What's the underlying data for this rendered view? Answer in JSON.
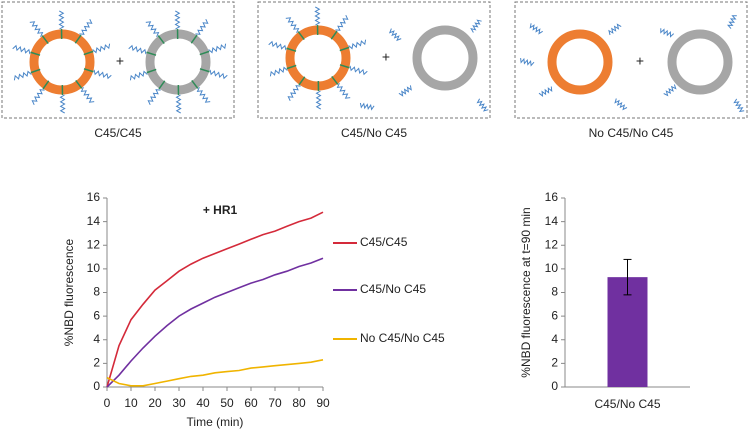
{
  "panels": [
    {
      "label": "C45/C45",
      "operator": "+"
    },
    {
      "label": "C45/No C45",
      "operator": "+"
    },
    {
      "label": "No C45/No C45",
      "operator": "+"
    }
  ],
  "chart_data": [
    {
      "type": "line",
      "annotation": "+ HR1",
      "xlabel": "Time (min)",
      "ylabel": "%NBD fluorescence",
      "x": [
        0,
        5,
        10,
        15,
        20,
        25,
        30,
        35,
        40,
        45,
        50,
        55,
        60,
        65,
        70,
        75,
        80,
        85,
        90
      ],
      "xlim": [
        0,
        90
      ],
      "xticks": [
        0,
        10,
        20,
        30,
        40,
        50,
        60,
        70,
        80,
        90
      ],
      "ylim": [
        0,
        16
      ],
      "yticks": [
        0,
        2,
        4,
        6,
        8,
        10,
        12,
        14,
        16
      ],
      "series": [
        {
          "name": "C45/C45",
          "color": "#d42a3a",
          "values": [
            0,
            3.5,
            5.7,
            7,
            8.2,
            9,
            9.8,
            10.4,
            10.9,
            11.3,
            11.7,
            12.1,
            12.5,
            12.9,
            13.2,
            13.6,
            14,
            14.3,
            14.8
          ]
        },
        {
          "name": "C45/No C45",
          "color": "#7030a0",
          "values": [
            0,
            1,
            2.2,
            3.3,
            4.3,
            5.2,
            6,
            6.6,
            7.1,
            7.6,
            8,
            8.4,
            8.8,
            9.1,
            9.5,
            9.8,
            10.2,
            10.5,
            10.9
          ]
        },
        {
          "name": "No C45/No C45",
          "color": "#f0b400",
          "values": [
            0.8,
            0.3,
            0.1,
            0.1,
            0.3,
            0.5,
            0.7,
            0.9,
            1.0,
            1.2,
            1.3,
            1.4,
            1.6,
            1.7,
            1.8,
            1.9,
            2.0,
            2.1,
            2.3
          ]
        }
      ]
    },
    {
      "type": "bar",
      "ylabel": "%NBD fluorescence at t=90 min",
      "categories": [
        "C45/No C45"
      ],
      "values": [
        9.3
      ],
      "errors": [
        1.5
      ],
      "color": "#7030a0",
      "ylim": [
        0,
        16
      ],
      "yticks": [
        0,
        2,
        4,
        6,
        8,
        10,
        12,
        14,
        16
      ]
    }
  ]
}
